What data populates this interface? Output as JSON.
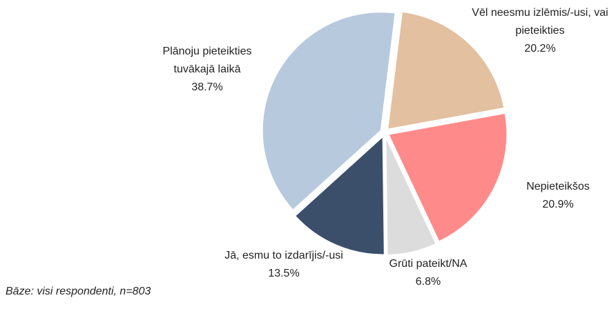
{
  "chart_data": {
    "type": "pie",
    "categories": [
      "Vēl neesmu izlēmis/-usi, vai pieteikties",
      "Nepieteikšos",
      "Grūti pateikt/NA",
      "Jā, esmu to izdarījis/-usi",
      "Plānoju pieteikties tuvākajā laikā"
    ],
    "values": [
      20.2,
      20.9,
      6.8,
      13.5,
      38.7
    ],
    "value_labels": [
      "20.2%",
      "20.9%",
      "6.8%",
      "13.5%",
      "38.7%"
    ],
    "colors": [
      "#e3c0a0",
      "#ff8a8a",
      "#dcdcdc",
      "#3b4f6b",
      "#b7c9dd"
    ],
    "note": "Bāze: visi respondenti, n=803"
  }
}
